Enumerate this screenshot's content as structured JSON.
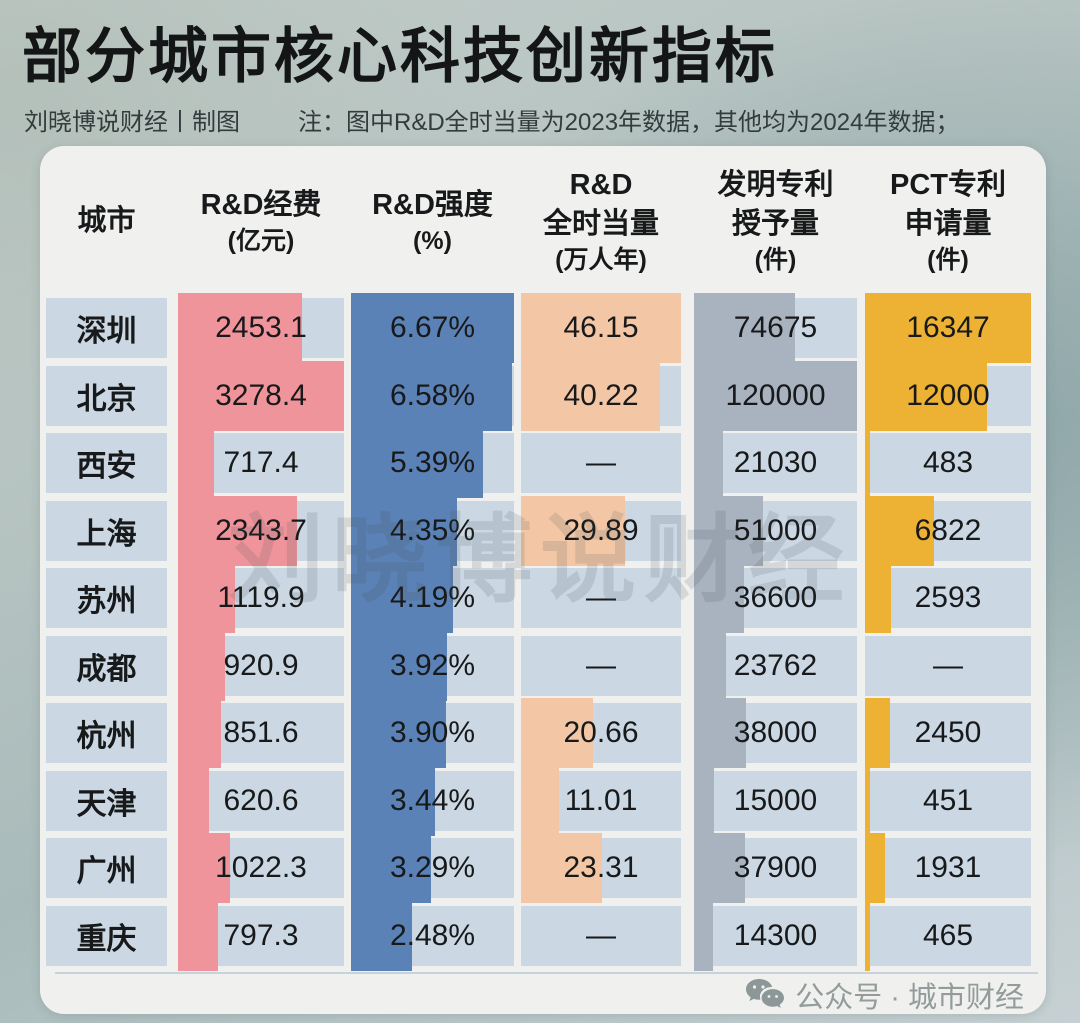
{
  "title": "部分城市核心科技创新指标",
  "byline": "刘晓博说财经丨制图",
  "note": "注：图中R&D全时当量为2023年数据，其他均为2024年数据；",
  "watermark": "刘晓博说财经",
  "footer": {
    "label": "公众号 · 城市财经",
    "icon": "wechat-icon"
  },
  "colors": {
    "background_green_gray": "#b4c2c0",
    "background_teal": "#8fa7a9",
    "panel": "#f0f1ef",
    "cell_bg": "#cbd8e3",
    "text": "#17191a",
    "footer_text": "#939b9b",
    "divider": "#c6d3dc",
    "bar_fee": "#f0949b",
    "bar_intensity": "#5b82b6",
    "bar_fte": "#f3c7a5",
    "bar_patents": "#a9b3c0",
    "bar_pct": "#edb234"
  },
  "chart_data": {
    "type": "table",
    "city_header": "城市",
    "columns": [
      {
        "key": "fee",
        "header": [
          "R&D经费",
          "(亿元)"
        ],
        "unit": "亿元",
        "max": 3278.4,
        "bar_color": "#f0949b"
      },
      {
        "key": "intensity",
        "header": [
          "R&D强度",
          "(%)"
        ],
        "unit": "%",
        "max": 6.67,
        "bar_color": "#5b82b6"
      },
      {
        "key": "fte",
        "header": [
          "R&D",
          "全时当量",
          "(万人年)"
        ],
        "unit": "万人年",
        "max": 46.15,
        "bar_color": "#f3c7a5"
      },
      {
        "key": "patents",
        "header": [
          "发明专利",
          "授予量",
          "(件)"
        ],
        "unit": "件",
        "max": 120000,
        "bar_color": "#a9b3c0"
      },
      {
        "key": "pct",
        "header": [
          "PCT专利",
          "申请量",
          "(件)"
        ],
        "unit": "件",
        "max": 16347,
        "bar_color": "#edb234"
      }
    ],
    "rows": [
      {
        "city": "深圳",
        "cells": [
          {
            "text": "2453.1",
            "v": 2453.1
          },
          {
            "text": "6.67%",
            "v": 6.67
          },
          {
            "text": "46.15",
            "v": 46.15
          },
          {
            "text": "74675",
            "v": 74675
          },
          {
            "text": "16347",
            "v": 16347
          }
        ]
      },
      {
        "city": "北京",
        "cells": [
          {
            "text": "3278.4",
            "v": 3278.4
          },
          {
            "text": "6.58%",
            "v": 6.58
          },
          {
            "text": "40.22",
            "v": 40.22
          },
          {
            "text": "120000",
            "v": 120000
          },
          {
            "text": "12000",
            "v": 12000
          }
        ]
      },
      {
        "city": "西安",
        "cells": [
          {
            "text": "717.4",
            "v": 717.4
          },
          {
            "text": "5.39%",
            "v": 5.39
          },
          {
            "text": "—",
            "v": null
          },
          {
            "text": "21030",
            "v": 21030
          },
          {
            "text": "483",
            "v": 483
          }
        ]
      },
      {
        "city": "上海",
        "cells": [
          {
            "text": "2343.7",
            "v": 2343.7
          },
          {
            "text": "4.35%",
            "v": 4.35
          },
          {
            "text": "29.89",
            "v": 29.89
          },
          {
            "text": "51000",
            "v": 51000
          },
          {
            "text": "6822",
            "v": 6822
          }
        ]
      },
      {
        "city": "苏州",
        "cells": [
          {
            "text": "1119.9",
            "v": 1119.9
          },
          {
            "text": "4.19%",
            "v": 4.19
          },
          {
            "text": "—",
            "v": null
          },
          {
            "text": "36600",
            "v": 36600
          },
          {
            "text": "2593",
            "v": 2593
          }
        ]
      },
      {
        "city": "成都",
        "cells": [
          {
            "text": "920.9",
            "v": 920.9
          },
          {
            "text": "3.92%",
            "v": 3.92
          },
          {
            "text": "—",
            "v": null
          },
          {
            "text": "23762",
            "v": 23762
          },
          {
            "text": "—",
            "v": null
          }
        ]
      },
      {
        "city": "杭州",
        "cells": [
          {
            "text": "851.6",
            "v": 851.6
          },
          {
            "text": "3.90%",
            "v": 3.9
          },
          {
            "text": "20.66",
            "v": 20.66
          },
          {
            "text": "38000",
            "v": 38000
          },
          {
            "text": "2450",
            "v": 2450
          }
        ]
      },
      {
        "city": "天津",
        "cells": [
          {
            "text": "620.6",
            "v": 620.6
          },
          {
            "text": "3.44%",
            "v": 3.44
          },
          {
            "text": "11.01",
            "v": 11.01
          },
          {
            "text": "15000",
            "v": 15000
          },
          {
            "text": "451",
            "v": 451
          }
        ]
      },
      {
        "city": "广州",
        "cells": [
          {
            "text": "1022.3",
            "v": 1022.3
          },
          {
            "text": "3.29%",
            "v": 3.29
          },
          {
            "text": "23.31",
            "v": 23.31
          },
          {
            "text": "37900",
            "v": 37900
          },
          {
            "text": "1931",
            "v": 1931
          }
        ]
      },
      {
        "city": "重庆",
        "cells": [
          {
            "text": "797.3",
            "v": 797.3
          },
          {
            "text": "2.48%",
            "v": 2.48
          },
          {
            "text": "—",
            "v": null
          },
          {
            "text": "14300",
            "v": 14300
          },
          {
            "text": "465",
            "v": 465
          }
        ]
      }
    ]
  }
}
